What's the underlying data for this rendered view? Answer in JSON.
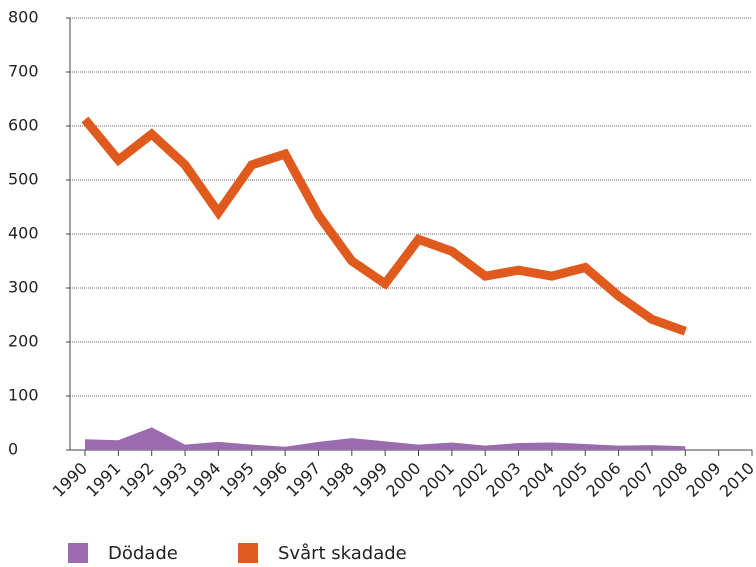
{
  "chart_data": {
    "type": "line",
    "x": [
      1990,
      1991,
      1992,
      1993,
      1994,
      1995,
      1996,
      1997,
      1998,
      1999,
      2000,
      2001,
      2002,
      2003,
      2004,
      2005,
      2006,
      2007,
      2008,
      2009,
      2010
    ],
    "series": [
      {
        "name": "Dödade",
        "color": "#9b6bb0",
        "area": true,
        "values": [
          20,
          18,
          42,
          10,
          15,
          10,
          6,
          15,
          22,
          16,
          10,
          14,
          8,
          13,
          14,
          11,
          8,
          9,
          7,
          null,
          null
        ]
      },
      {
        "name": "Svårt skadade",
        "color": "#e05a1e",
        "values": [
          612,
          537,
          585,
          528,
          440,
          528,
          548,
          435,
          350,
          308,
          390,
          368,
          322,
          333,
          322,
          338,
          285,
          242,
          220,
          null,
          null
        ]
      }
    ],
    "xlim": [
      1990,
      2010
    ],
    "xticks": [
      1990,
      1991,
      1992,
      1993,
      1994,
      1995,
      1996,
      1997,
      1998,
      1999,
      2000,
      2001,
      2002,
      2003,
      2004,
      2005,
      2006,
      2007,
      2008,
      2009,
      2010
    ],
    "ylim": [
      0,
      800
    ],
    "yticks": [
      0,
      100,
      200,
      300,
      400,
      500,
      600,
      700,
      800
    ],
    "grid": true,
    "legend": "bottom"
  }
}
